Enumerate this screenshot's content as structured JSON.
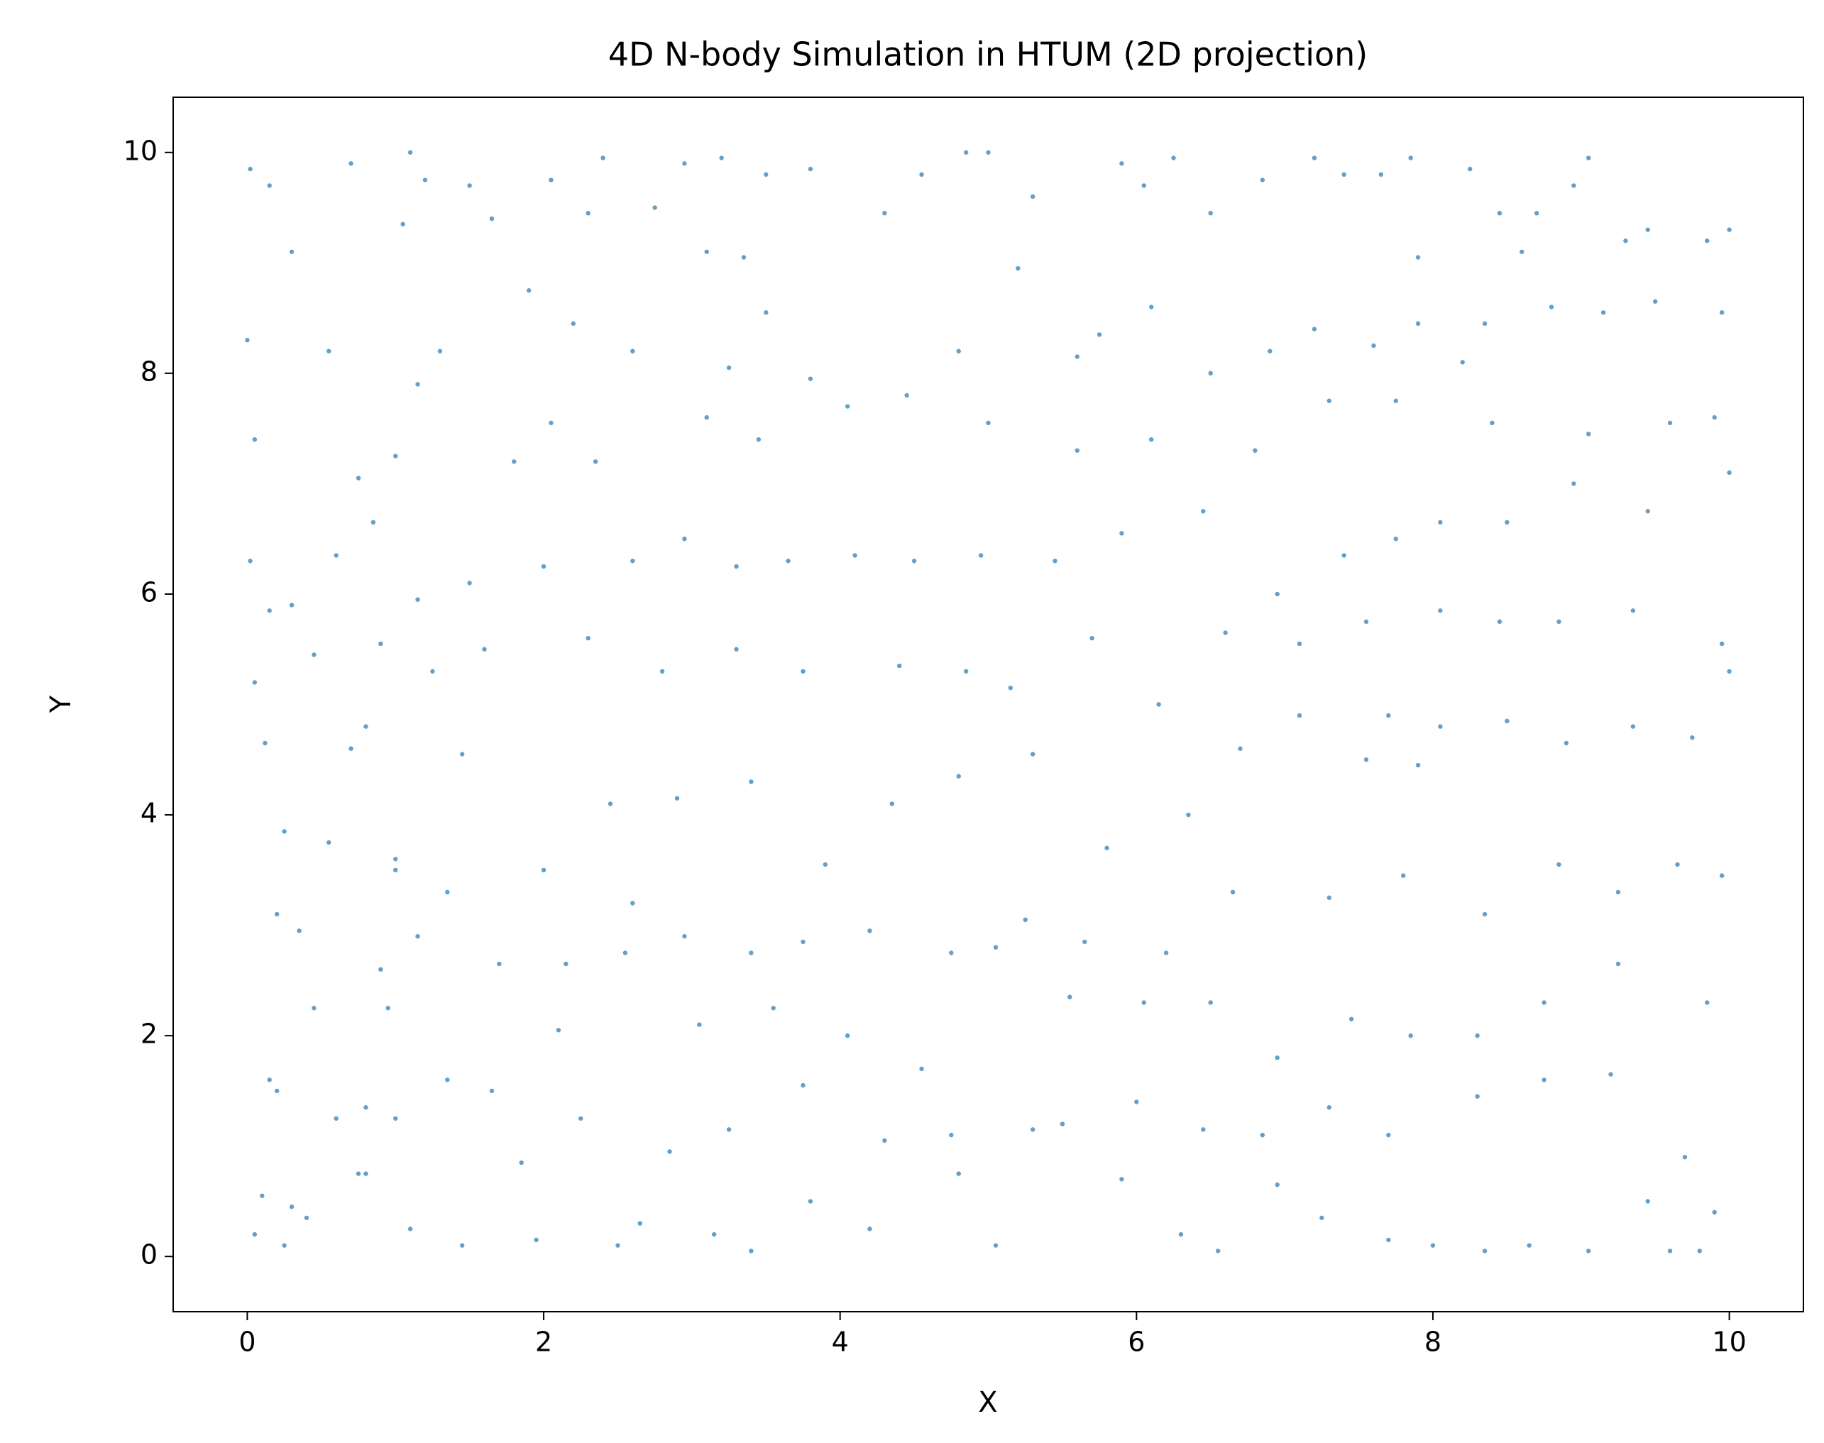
{
  "chart_data": {
    "type": "scatter",
    "title": "4D N-body Simulation in HTUM (2D projection)",
    "x_label": "X",
    "y_label": "Y",
    "color": "#1f77b4",
    "xlim": [
      -0.5,
      10.5
    ],
    "ylim": [
      -0.5,
      10.5
    ],
    "xticks": [
      0,
      2,
      4,
      6,
      8,
      10
    ],
    "yticks": [
      0,
      2,
      4,
      6,
      8,
      10
    ],
    "x": [
      0.02,
      0.15,
      0.0,
      0.3,
      0.05,
      0.02,
      0.05,
      0.12,
      0.25,
      0.2,
      0.15,
      0.1,
      0.05,
      0.25,
      0.4,
      0.6,
      0.75,
      0.9,
      1.0,
      0.7,
      0.8,
      0.9,
      0.6,
      0.85,
      0.75,
      0.55,
      0.7,
      1.05,
      1.1,
      1.2,
      1.5,
      1.65,
      1.9,
      2.05,
      2.3,
      2.4,
      2.75,
      2.95,
      3.2,
      3.5,
      3.8,
      3.1,
      3.35,
      3.5,
      2.6,
      2.2,
      1.3,
      1.15,
      1.0,
      1.8,
      2.05,
      2.35,
      3.1,
      3.25,
      3.45,
      3.8,
      4.05,
      4.45,
      4.8,
      4.3,
      4.55,
      4.85,
      5.0,
      5.3,
      5.9,
      6.05,
      6.25,
      6.5,
      6.85,
      7.2,
      7.4,
      7.65,
      7.85,
      7.9,
      8.25,
      8.45,
      8.7,
      8.95,
      9.05,
      9.3,
      9.45,
      9.85,
      10.0,
      9.95,
      9.5,
      9.15,
      8.8,
      8.6,
      8.35,
      8.2,
      7.9,
      7.6,
      7.2,
      6.9,
      6.5,
      6.1,
      5.6,
      5.2,
      5.75,
      5.0,
      5.6,
      6.1,
      6.8,
      7.3,
      7.75,
      8.4,
      9.05,
      9.6,
      9.9,
      10.0,
      9.45,
      8.95,
      8.5,
      8.05,
      7.75,
      7.4,
      6.95,
      6.45,
      5.9,
      5.45,
      4.95,
      4.5,
      4.1,
      3.65,
      3.3,
      2.95,
      2.6,
      2.0,
      1.5,
      1.15,
      0.3,
      0.15,
      0.45,
      1.25,
      1.6,
      2.3,
      2.8,
      3.3,
      3.75,
      4.4,
      4.85,
      5.15,
      5.7,
      6.15,
      6.6,
      7.1,
      7.55,
      8.05,
      8.45,
      8.85,
      9.35,
      9.95,
      10.0,
      9.75,
      9.35,
      8.9,
      8.5,
      8.05,
      7.7,
      7.9,
      7.55,
      7.1,
      6.7,
      6.35,
      5.8,
      5.3,
      4.8,
      4.35,
      3.9,
      3.4,
      2.9,
      2.45,
      2.0,
      1.45,
      1.0,
      0.55,
      0.35,
      0.45,
      0.95,
      1.15,
      1.35,
      1.7,
      2.15,
      2.6,
      2.95,
      3.4,
      3.75,
      4.2,
      4.75,
      5.25,
      5.65,
      6.2,
      6.65,
      7.3,
      7.8,
      8.35,
      8.85,
      9.25,
      9.65,
      9.95,
      9.85,
      9.25,
      8.75,
      8.3,
      7.85,
      7.45,
      6.95,
      6.5,
      6.05,
      5.55,
      5.05,
      4.55,
      4.05,
      3.55,
      3.05,
      2.55,
      2.1,
      1.65,
      1.35,
      0.8,
      0.2,
      0.3,
      0.8,
      1.1,
      1.45,
      1.95,
      2.5,
      2.65,
      3.15,
      3.4,
      3.8,
      4.2,
      4.8,
      5.05,
      5.5,
      5.9,
      6.3,
      6.55,
      6.95,
      7.25,
      7.7,
      8.0,
      8.35,
      8.65,
      9.05,
      9.45,
      9.6,
      9.8,
      9.9,
      9.7,
      9.2,
      8.75,
      8.3,
      7.7,
      7.3,
      6.85,
      6.45,
      6.0,
      5.3,
      4.75,
      4.3,
      3.75,
      3.25,
      2.85,
      2.25,
      1.85,
      1.0
    ],
    "values": [
      9.85,
      9.7,
      8.3,
      9.1,
      7.4,
      6.3,
      5.2,
      4.65,
      3.85,
      3.1,
      1.6,
      0.55,
      0.2,
      0.1,
      0.35,
      1.25,
      0.75,
      2.6,
      3.5,
      4.6,
      4.8,
      5.55,
      6.35,
      6.65,
      7.05,
      8.2,
      9.9,
      9.35,
      10.0,
      9.75,
      9.7,
      9.4,
      8.75,
      9.75,
      9.45,
      9.95,
      9.5,
      9.9,
      9.95,
      9.8,
      9.85,
      9.1,
      9.05,
      8.55,
      8.2,
      8.45,
      8.2,
      7.9,
      7.25,
      7.2,
      7.55,
      7.2,
      7.6,
      8.05,
      7.4,
      7.95,
      7.7,
      7.8,
      8.2,
      9.45,
      9.8,
      10.0,
      10.0,
      9.6,
      9.9,
      9.7,
      9.95,
      9.45,
      9.75,
      9.95,
      9.8,
      9.8,
      9.95,
      9.05,
      9.85,
      9.45,
      9.45,
      9.7,
      9.95,
      9.2,
      9.3,
      9.2,
      9.3,
      8.55,
      8.65,
      8.55,
      8.6,
      9.1,
      8.45,
      8.1,
      8.45,
      8.25,
      8.4,
      8.2,
      8.0,
      8.6,
      8.15,
      8.95,
      8.35,
      7.55,
      7.3,
      7.4,
      7.3,
      7.75,
      7.75,
      7.55,
      7.45,
      7.55,
      7.6,
      7.1,
      6.75,
      7.0,
      6.65,
      6.65,
      6.5,
      6.35,
      6.0,
      6.75,
      6.55,
      6.3,
      6.35,
      6.3,
      6.35,
      6.3,
      6.25,
      6.5,
      6.3,
      6.25,
      6.1,
      5.95,
      5.9,
      5.85,
      5.45,
      5.3,
      5.5,
      5.6,
      5.3,
      5.5,
      5.3,
      5.35,
      5.3,
      5.15,
      5.6,
      5.0,
      5.65,
      5.55,
      5.75,
      5.85,
      5.75,
      5.75,
      5.85,
      5.55,
      5.3,
      4.7,
      4.8,
      4.65,
      4.85,
      4.8,
      4.9,
      4.45,
      4.5,
      4.9,
      4.6,
      4.0,
      3.7,
      4.55,
      4.35,
      4.1,
      3.55,
      4.3,
      4.15,
      4.1,
      3.5,
      4.55,
      3.6,
      3.75,
      2.95,
      2.25,
      2.25,
      2.9,
      3.3,
      2.65,
      2.65,
      3.2,
      2.9,
      2.75,
      2.85,
      2.95,
      2.75,
      3.05,
      2.85,
      2.75,
      3.3,
      3.25,
      3.45,
      3.1,
      3.55,
      3.3,
      3.55,
      3.45,
      2.3,
      2.65,
      2.3,
      2.0,
      2.0,
      2.15,
      1.8,
      2.3,
      2.3,
      2.35,
      2.8,
      1.7,
      2.0,
      2.25,
      2.1,
      2.75,
      2.05,
      1.5,
      1.6,
      1.35,
      1.5,
      0.45,
      0.75,
      0.25,
      0.1,
      0.15,
      0.1,
      0.3,
      0.2,
      0.05,
      0.5,
      0.25,
      0.75,
      0.1,
      1.2,
      0.7,
      0.2,
      0.05,
      0.65,
      0.35,
      0.15,
      0.1,
      0.05,
      0.1,
      0.05,
      0.5,
      0.05,
      0.05,
      0.4,
      0.9,
      1.65,
      1.6,
      1.45,
      1.1,
      1.35,
      1.1,
      1.15,
      1.4,
      1.15,
      1.1,
      1.05,
      1.55,
      1.15,
      0.95,
      1.25,
      0.85,
      1.25
    ]
  }
}
